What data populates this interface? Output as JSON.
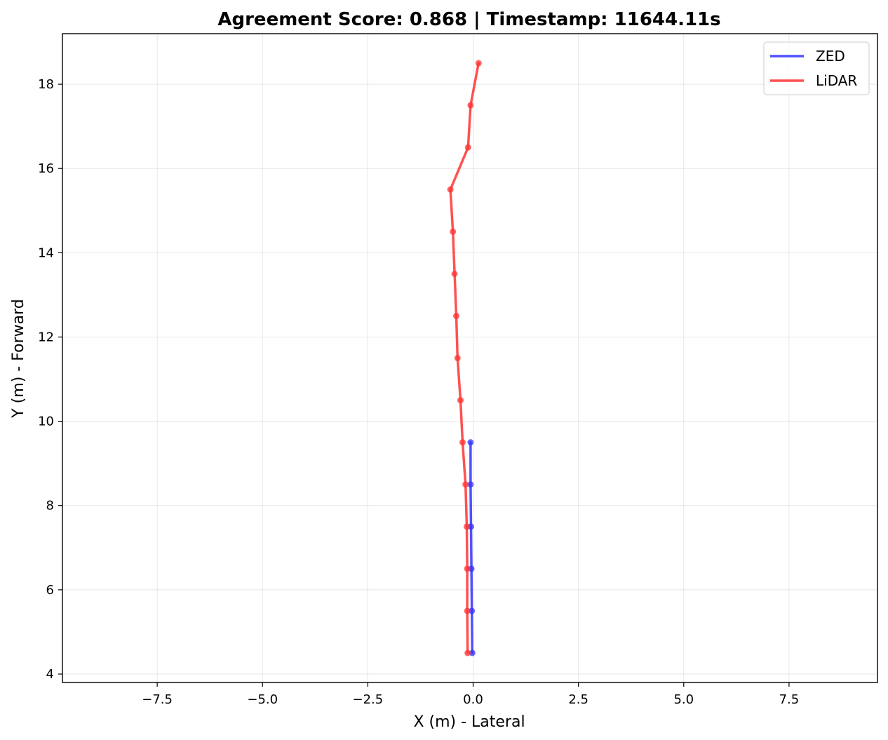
{
  "chart_data": {
    "type": "line",
    "title": "Agreement Score: 0.868 | Timestamp: 11644.11s",
    "xlabel": "X (m) - Lateral",
    "ylabel": "Y (m) - Forward",
    "xlim": [
      -9.75,
      9.6
    ],
    "ylim": [
      3.8,
      19.2
    ],
    "xticks": [
      -7.5,
      -5.0,
      -2.5,
      0.0,
      2.5,
      5.0,
      7.5
    ],
    "xtick_labels": [
      "−7.5",
      "−5.0",
      "−2.5",
      "0.0",
      "2.5",
      "5.0",
      "7.5"
    ],
    "yticks": [
      4,
      6,
      8,
      10,
      12,
      14,
      16,
      18
    ],
    "ytick_labels": [
      "4",
      "6",
      "8",
      "10",
      "12",
      "14",
      "16",
      "18"
    ],
    "grid": true,
    "legend_position": "top-right",
    "series": [
      {
        "name": "ZED",
        "color": "#3333ff",
        "x": [
          -0.02,
          -0.03,
          -0.04,
          -0.05,
          -0.06,
          -0.06
        ],
        "y": [
          4.5,
          5.5,
          6.5,
          7.5,
          8.5,
          9.5
        ]
      },
      {
        "name": "LiDAR",
        "color": "#ff3333",
        "x": [
          -0.13,
          -0.14,
          -0.14,
          -0.15,
          -0.18,
          -0.25,
          -0.3,
          -0.37,
          -0.4,
          -0.44,
          -0.48,
          -0.54,
          -0.12,
          -0.06,
          0.13
        ],
        "y": [
          4.5,
          5.5,
          6.5,
          7.5,
          8.5,
          9.5,
          10.5,
          11.5,
          12.5,
          13.5,
          14.5,
          15.5,
          16.5,
          17.5,
          18.5
        ]
      }
    ]
  }
}
